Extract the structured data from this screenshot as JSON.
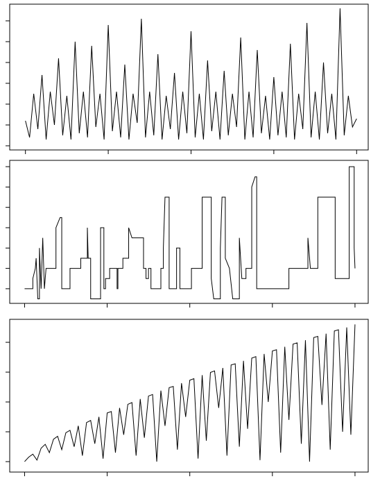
{
  "chart_data": [
    {
      "type": "line",
      "color": "#000000",
      "xlim": [
        -190,
        4140
      ],
      "ylim": [
        -0.2,
        6.8
      ],
      "xticks": [
        0,
        1000,
        2000,
        3000,
        4000
      ],
      "yticks": [
        0,
        1,
        2,
        3,
        4,
        5,
        6
      ],
      "x": [
        0,
        50,
        100,
        150,
        200,
        250,
        300,
        350,
        400,
        450,
        500,
        550,
        600,
        650,
        700,
        750,
        800,
        850,
        900,
        950,
        1000,
        1050,
        1100,
        1150,
        1200,
        1250,
        1300,
        1350,
        1400,
        1450,
        1500,
        1550,
        1600,
        1650,
        1700,
        1750,
        1800,
        1850,
        1900,
        1950,
        2000,
        2050,
        2100,
        2150,
        2200,
        2250,
        2300,
        2350,
        2400,
        2450,
        2500,
        2550,
        2600,
        2650,
        2700,
        2750,
        2800,
        2850,
        2900,
        2950,
        3000,
        3050,
        3100,
        3150,
        3200,
        3250,
        3300,
        3350,
        3400,
        3450,
        3500,
        3550,
        3600,
        3650,
        3700,
        3750,
        3800,
        3850,
        3900,
        3950,
        4000
      ],
      "values": [
        1.2,
        0.4,
        2.5,
        0.8,
        3.4,
        0.3,
        2.6,
        1.0,
        4.2,
        0.5,
        2.4,
        0.3,
        5.0,
        0.6,
        2.6,
        0.4,
        4.8,
        0.9,
        2.5,
        0.3,
        5.8,
        0.7,
        2.6,
        0.4,
        3.9,
        0.3,
        2.5,
        1.1,
        6.1,
        0.4,
        2.6,
        0.5,
        4.4,
        0.3,
        2.4,
        0.8,
        3.5,
        0.3,
        2.6,
        0.6,
        5.5,
        0.4,
        2.5,
        0.3,
        4.1,
        0.7,
        2.6,
        0.3,
        3.6,
        0.5,
        2.5,
        0.9,
        5.2,
        0.3,
        2.6,
        0.4,
        4.6,
        0.6,
        2.4,
        0.3,
        3.3,
        0.5,
        2.6,
        0.4,
        4.9,
        0.3,
        2.5,
        0.8,
        5.9,
        0.4,
        2.6,
        0.3,
        4.0,
        0.6,
        2.5,
        0.3,
        6.6,
        0.5,
        2.4,
        0.9,
        1.3
      ]
    },
    {
      "type": "line",
      "color": "#000000",
      "xlim": [
        -180,
        4160
      ],
      "ylim": [
        -0.72,
        6.31
      ],
      "xticks": [
        0,
        1000,
        2000,
        3000,
        4000
      ],
      "yticks": [
        0,
        1,
        2,
        3,
        4,
        5,
        6
      ],
      "x": [
        0,
        100,
        100,
        130,
        140,
        160,
        180,
        180,
        200,
        220,
        240,
        260,
        380,
        380,
        430,
        450,
        450,
        550,
        550,
        680,
        680,
        760,
        760,
        770,
        800,
        800,
        920,
        920,
        960,
        960,
        980,
        980,
        1030,
        1030,
        1120,
        1120,
        1130,
        1130,
        1190,
        1190,
        1260,
        1260,
        1300,
        1440,
        1440,
        1470,
        1470,
        1500,
        1500,
        1530,
        1530,
        1650,
        1650,
        1680,
        1680,
        1700,
        1750,
        1750,
        1840,
        1840,
        1880,
        1880,
        2020,
        2020,
        2150,
        2150,
        2260,
        2260,
        2290,
        2370,
        2370,
        2390,
        2430,
        2430,
        2480,
        2520,
        2600,
        2600,
        2630,
        2680,
        2680,
        2750,
        2750,
        2790,
        2810,
        2810,
        3200,
        3200,
        3430,
        3430,
        3460,
        3550,
        3550,
        3760,
        3760,
        3930,
        3930,
        3990,
        3990,
        4000
      ],
      "values": [
        0,
        0,
        0.5,
        1,
        1.5,
        -0.5,
        -0.5,
        2,
        0,
        2.5,
        0,
        1,
        1,
        3,
        3.5,
        3.5,
        0,
        0,
        1,
        1,
        1.5,
        1.5,
        3,
        1.5,
        1.5,
        -0.5,
        -0.5,
        3,
        3,
        0,
        0,
        0.5,
        0.5,
        1,
        1,
        0,
        0,
        1,
        1,
        1.5,
        1.5,
        3,
        2.5,
        2.5,
        1,
        1,
        0.5,
        0.5,
        1,
        1,
        0,
        0,
        1,
        1,
        2,
        4.5,
        4.5,
        0,
        0,
        2,
        2,
        0,
        0,
        1,
        1,
        4.5,
        4.5,
        0.5,
        -0.5,
        -0.5,
        2,
        4.5,
        4.5,
        1.5,
        1,
        -0.5,
        -0.5,
        2.5,
        0.5,
        0.5,
        1,
        1,
        5,
        5.5,
        5.5,
        0,
        0,
        1,
        1,
        2.5,
        1,
        1,
        4.5,
        4.5,
        0.5,
        0.5,
        6,
        6,
        2,
        1
      ]
    },
    {
      "type": "line",
      "color": "#000000",
      "xlim": [
        -180,
        4160
      ],
      "ylim": [
        -0.35,
        4.77
      ],
      "xticks": [
        0,
        1000,
        2000,
        3000,
        4000
      ],
      "yticks": [
        0,
        1,
        2,
        3,
        4
      ],
      "x": [
        0,
        50,
        100,
        150,
        200,
        250,
        300,
        350,
        400,
        450,
        500,
        550,
        600,
        650,
        700,
        750,
        800,
        850,
        900,
        950,
        1000,
        1050,
        1100,
        1150,
        1200,
        1250,
        1300,
        1350,
        1400,
        1450,
        1500,
        1550,
        1600,
        1650,
        1700,
        1750,
        1800,
        1850,
        1900,
        1950,
        2000,
        2050,
        2100,
        2150,
        2200,
        2250,
        2300,
        2350,
        2400,
        2450,
        2500,
        2550,
        2600,
        2650,
        2700,
        2750,
        2800,
        2850,
        2900,
        2950,
        3000,
        3050,
        3100,
        3150,
        3200,
        3250,
        3300,
        3350,
        3400,
        3450,
        3500,
        3550,
        3600,
        3650,
        3700,
        3750,
        3800,
        3850,
        3900,
        3950,
        4000
      ],
      "values": [
        0,
        0.15,
        0.25,
        0.05,
        0.45,
        0.58,
        0.3,
        0.75,
        0.85,
        0.4,
        0.97,
        1.05,
        0.5,
        1.2,
        0.2,
        1.31,
        1.38,
        0.6,
        1.5,
        0.1,
        1.63,
        1.68,
        0.3,
        1.8,
        0.9,
        1.92,
        1.98,
        0.2,
        2.1,
        0.8,
        2.2,
        2.25,
        0.0,
        2.38,
        1.2,
        2.48,
        2.52,
        0.4,
        2.63,
        1.5,
        2.73,
        2.78,
        0.1,
        2.9,
        0.7,
        2.99,
        3.04,
        1.8,
        3.14,
        0.2,
        3.24,
        3.28,
        0.5,
        3.38,
        1.1,
        3.47,
        3.52,
        0.05,
        3.61,
        2.0,
        3.71,
        3.75,
        0.3,
        3.85,
        1.4,
        3.94,
        3.98,
        0.6,
        4.07,
        0.0,
        4.16,
        4.2,
        1.9,
        4.29,
        0.4,
        4.38,
        4.42,
        1.0,
        4.5,
        0.9,
        4.6
      ]
    }
  ]
}
